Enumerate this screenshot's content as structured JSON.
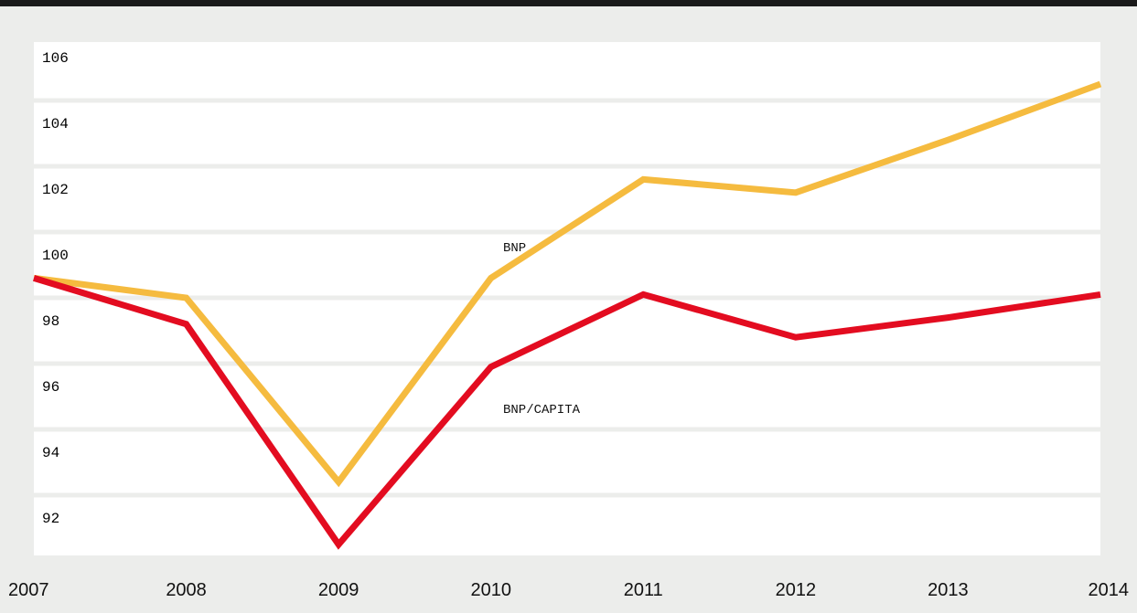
{
  "chart_data": {
    "type": "line",
    "x": [
      "2007",
      "2008",
      "2009",
      "2010",
      "2011",
      "2012",
      "2013",
      "2014"
    ],
    "series": [
      {
        "name": "BNP",
        "color": "#f5bb3f",
        "values": [
          99.6,
          99.0,
          93.4,
          99.6,
          102.6,
          102.2,
          103.8,
          105.5
        ]
      },
      {
        "name": "BNP/CAPITA",
        "color": "#e30c20",
        "values": [
          99.6,
          98.2,
          91.5,
          96.9,
          99.1,
          97.8,
          98.4,
          99.1
        ]
      }
    ],
    "y_ticks": [
      "92",
      "94",
      "96",
      "98",
      "100",
      "102",
      "104",
      "106"
    ],
    "ylim": [
      91.0,
      107.0
    ],
    "grid": true
  }
}
